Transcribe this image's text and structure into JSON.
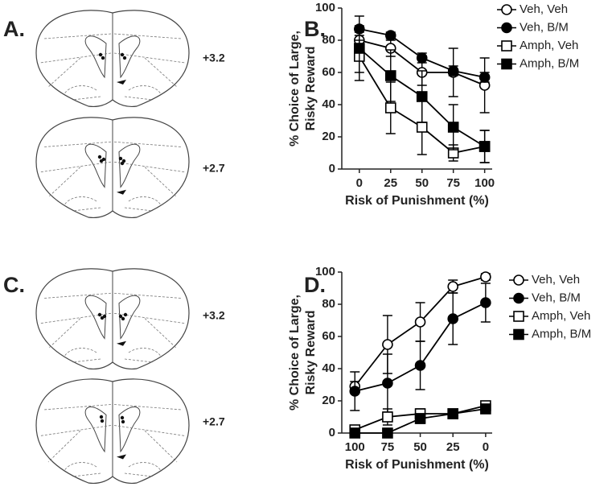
{
  "panels": {
    "labels": [
      "A.",
      "B.",
      "C.",
      "D."
    ],
    "coordinates": [
      "+3.2",
      "+2.7",
      "+3.2",
      "+2.7"
    ]
  },
  "chart_data": [
    {
      "type": "line",
      "xlabel": "Risk of Punishment (%)",
      "ylabel": [
        "% Choice of Large,",
        "Risky  Reward"
      ],
      "x": [
        0,
        25,
        50,
        75,
        100
      ],
      "xlim": [
        -14,
        106
      ],
      "xticks": [
        0,
        25,
        50,
        75,
        100
      ],
      "ylim": [
        0,
        100
      ],
      "yticks": [
        0,
        20,
        40,
        60,
        80,
        100
      ],
      "grid": false,
      "series": [
        {
          "name": "Veh, Veh",
          "color": "#000000",
          "marker": "open-circle",
          "values": [
            80,
            75,
            60,
            60,
            52
          ],
          "errors": [
            3,
            5,
            8,
            15,
            17
          ]
        },
        {
          "name": "Veh, B/M",
          "color": "#000000",
          "marker": "filled-circle",
          "values": [
            87,
            83,
            69,
            61,
            57
          ],
          "errors": [
            2,
            2,
            3,
            3,
            3
          ]
        },
        {
          "name": "Amph, Veh",
          "color": "#000000",
          "marker": "open-square",
          "values": [
            70,
            38,
            26,
            10,
            14
          ],
          "errors": [
            10,
            16,
            17,
            5,
            10
          ]
        },
        {
          "name": "Amph, B/M",
          "color": "#000000",
          "marker": "filled-square",
          "values": [
            75,
            58,
            45,
            26,
            14
          ],
          "errors": [
            20,
            16,
            16,
            14,
            10
          ]
        }
      ]
    },
    {
      "type": "line",
      "xlabel": "Risk of Punishment (%)",
      "ylabel": [
        "% Choice of Large,",
        "Risky  Reward"
      ],
      "x": [
        100,
        75,
        50,
        25,
        0
      ],
      "xlim": [
        110,
        -5
      ],
      "xticks": [
        100,
        75,
        50,
        25,
        0
      ],
      "ylim": [
        0,
        100
      ],
      "yticks": [
        0,
        20,
        40,
        60,
        80,
        100
      ],
      "grid": false,
      "series": [
        {
          "name": "Veh, Veh",
          "color": "#000000",
          "marker": "open-circle",
          "values": [
            29,
            55,
            69,
            91,
            97
          ],
          "errors": [
            3,
            18,
            12,
            4,
            2
          ]
        },
        {
          "name": "Veh, B/M",
          "color": "#000000",
          "marker": "filled-circle",
          "values": [
            26,
            31,
            42,
            71,
            81
          ],
          "errors": [
            12,
            18,
            15,
            16,
            12
          ]
        },
        {
          "name": "Amph, Veh",
          "color": "#000000",
          "marker": "open-square",
          "values": [
            2,
            10,
            12,
            12,
            17
          ],
          "errors": [
            2,
            5,
            3,
            2,
            2
          ]
        },
        {
          "name": "Amph, B/M",
          "color": "#000000",
          "marker": "filled-square",
          "values": [
            0,
            0,
            9,
            12,
            15
          ],
          "errors": [
            0,
            0,
            3,
            2,
            2
          ]
        }
      ]
    }
  ]
}
